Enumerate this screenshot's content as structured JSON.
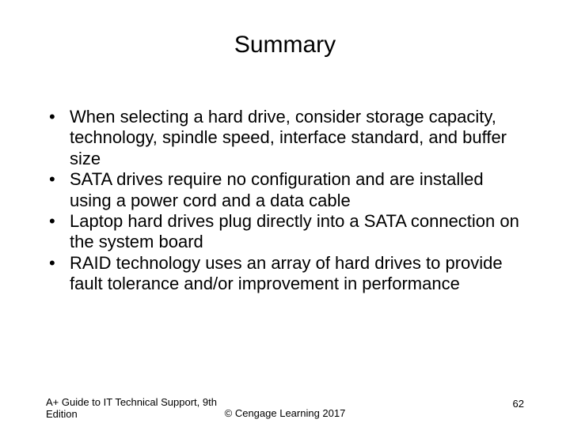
{
  "title": "Summary",
  "bullets": [
    "When selecting a hard drive, consider storage capacity, technology, spindle speed, interface standard, and buffer size",
    "SATA drives require no configuration and are installed using a power cord and a data cable",
    "Laptop hard drives plug directly into a SATA connection on the system board",
    "RAID technology uses an array of hard drives to provide fault tolerance and/or improvement in performance"
  ],
  "footer": {
    "left": "A+ Guide to IT Technical Support, 9th Edition",
    "center": "© Cengage Learning  2017",
    "page": "62"
  },
  "style": {
    "background_color": "#ffffff",
    "text_color": "#000000",
    "title_fontsize": 30,
    "body_fontsize": 22,
    "footer_fontsize": 13,
    "font_family": "Arial"
  }
}
